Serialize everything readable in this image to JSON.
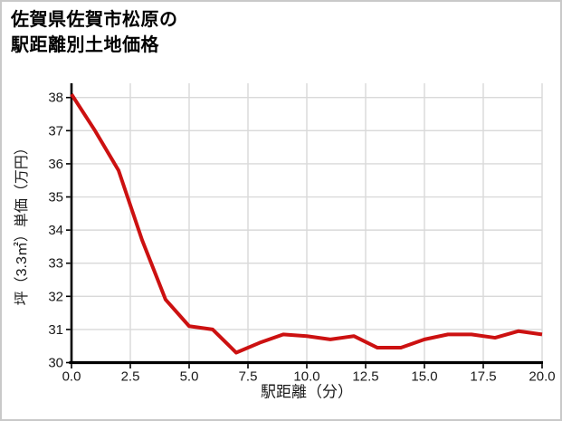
{
  "title": {
    "line1": "佐賀県佐賀市松原の",
    "line2": "駅距離別土地価格"
  },
  "colors": {
    "line": "#cc1111",
    "grid": "#d9d9d9",
    "axis": "#000000",
    "text": "#1a1a1a",
    "border": "#c9c9c9",
    "background": "#ffffff"
  },
  "chart_data": {
    "type": "line",
    "title": "佐賀県佐賀市松原の駅距離別土地価格",
    "xlabel": "駅距離（分）",
    "ylabel": "坪（3.3㎡）単価（万円）",
    "legend": "none",
    "grid": "on",
    "line_width": 4,
    "x": [
      0,
      1,
      2,
      3,
      4,
      5,
      6,
      7,
      8,
      9,
      10,
      11,
      12,
      13,
      14,
      15,
      16,
      17,
      18,
      19,
      20
    ],
    "y": [
      38.1,
      37.0,
      35.8,
      33.7,
      31.9,
      31.1,
      31.0,
      30.3,
      30.6,
      30.85,
      30.8,
      30.7,
      30.8,
      30.45,
      30.45,
      30.7,
      30.85,
      30.85,
      30.75,
      30.95,
      30.85
    ],
    "x_ticks": [
      0,
      2.5,
      5,
      7.5,
      10,
      12.5,
      15,
      17.5,
      20
    ],
    "x_tick_labels": [
      "0.0",
      "2.5",
      "5.0",
      "7.5",
      "10.0",
      "12.5",
      "15.0",
      "17.5",
      "20.0"
    ],
    "y_ticks": [
      30,
      31,
      32,
      33,
      34,
      35,
      36,
      37,
      38
    ],
    "y_tick_labels": [
      "30",
      "31",
      "32",
      "33",
      "34",
      "35",
      "36",
      "37",
      "38"
    ],
    "xlim": [
      0,
      20
    ],
    "ylim": [
      30,
      38.43
    ]
  }
}
